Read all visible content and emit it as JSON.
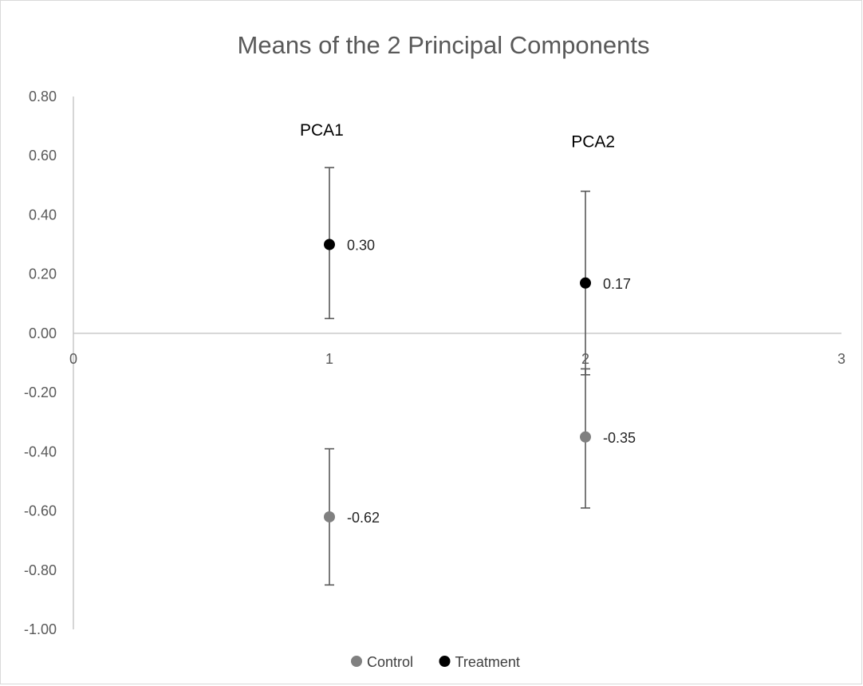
{
  "chart_data": {
    "type": "scatter",
    "title": "Means of the 2 Principal Components",
    "xlabel": "",
    "ylabel": "",
    "xlim": [
      0,
      3
    ],
    "ylim": [
      -1.0,
      0.8
    ],
    "x_ticks": [
      "0",
      "1",
      "2",
      "3"
    ],
    "y_ticks": [
      "0.80",
      "0.60",
      "0.40",
      "0.20",
      "0.00",
      "-0.20",
      "-0.40",
      "-0.60",
      "-0.80",
      "-1.00"
    ],
    "grid": false,
    "legend_position": "bottom",
    "series": [
      {
        "name": "Control",
        "color": "#808080",
        "points": [
          {
            "x": 1,
            "y": -0.62,
            "label": "-0.62",
            "err_low": -0.85,
            "err_high": -0.39
          },
          {
            "x": 2,
            "y": -0.35,
            "label": "-0.35",
            "err_low": -0.59,
            "err_high": -0.12
          }
        ]
      },
      {
        "name": "Treatment",
        "color": "#000000",
        "points": [
          {
            "x": 1,
            "y": 0.3,
            "label": "0.30",
            "err_low": 0.05,
            "err_high": 0.56
          },
          {
            "x": 2,
            "y": 0.17,
            "label": "0.17",
            "err_low": -0.14,
            "err_high": 0.48
          }
        ]
      }
    ],
    "annotations": [
      {
        "text": "PCA1",
        "x": 0.97,
        "y": 0.69
      },
      {
        "text": "PCA2",
        "x": 2.03,
        "y": 0.65
      }
    ]
  }
}
